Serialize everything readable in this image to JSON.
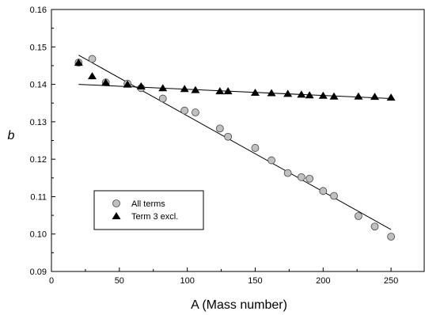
{
  "chart_data": {
    "type": "scatter",
    "xlabel": "A (Mass number)",
    "ylabel": "b",
    "xlim": [
      0,
      275
    ],
    "ylim": [
      0.09,
      0.16
    ],
    "xticks": [
      0,
      50,
      100,
      150,
      200,
      250
    ],
    "yticks": [
      0.09,
      0.1,
      0.11,
      0.12,
      0.13,
      0.14,
      0.15,
      0.16
    ],
    "ytick_labels": [
      "0.09",
      "0.10",
      "0.11",
      "0.12",
      "0.13",
      "0.14",
      "0.15",
      "0.16"
    ],
    "grid": false,
    "legend": "center-left",
    "series": [
      {
        "name": "All terms",
        "marker": "circle",
        "color": "#c0c0c0",
        "points": [
          [
            20,
            0.1458
          ],
          [
            30,
            0.1468
          ],
          [
            40,
            0.1405
          ],
          [
            56,
            0.1402
          ],
          [
            66,
            0.139
          ],
          [
            82,
            0.1362
          ],
          [
            98,
            0.133
          ],
          [
            106,
            0.1325
          ],
          [
            124,
            0.1282
          ],
          [
            130,
            0.126
          ],
          [
            150,
            0.123
          ],
          [
            162,
            0.1197
          ],
          [
            174,
            0.1163
          ],
          [
            184,
            0.1152
          ],
          [
            190,
            0.1148
          ],
          [
            200,
            0.1115
          ],
          [
            208,
            0.1102
          ],
          [
            226,
            0.1048
          ],
          [
            238,
            0.102
          ],
          [
            250,
            0.0993
          ]
        ],
        "fit": [
          [
            20,
            0.1478
          ],
          [
            250,
            0.1012
          ]
        ]
      },
      {
        "name": "Term 3 excl.",
        "marker": "triangle",
        "color": "#000000",
        "points": [
          [
            20,
            0.1458
          ],
          [
            30,
            0.1422
          ],
          [
            40,
            0.1405
          ],
          [
            56,
            0.14
          ],
          [
            66,
            0.1395
          ],
          [
            82,
            0.139
          ],
          [
            98,
            0.1388
          ],
          [
            106,
            0.1385
          ],
          [
            124,
            0.1382
          ],
          [
            130,
            0.1382
          ],
          [
            150,
            0.1378
          ],
          [
            162,
            0.1377
          ],
          [
            174,
            0.1375
          ],
          [
            184,
            0.1373
          ],
          [
            190,
            0.1371
          ],
          [
            200,
            0.137
          ],
          [
            208,
            0.1368
          ],
          [
            226,
            0.1368
          ],
          [
            238,
            0.1367
          ],
          [
            250,
            0.1365
          ]
        ],
        "fit": [
          [
            20,
            0.14
          ],
          [
            250,
            0.1362
          ]
        ]
      }
    ]
  }
}
